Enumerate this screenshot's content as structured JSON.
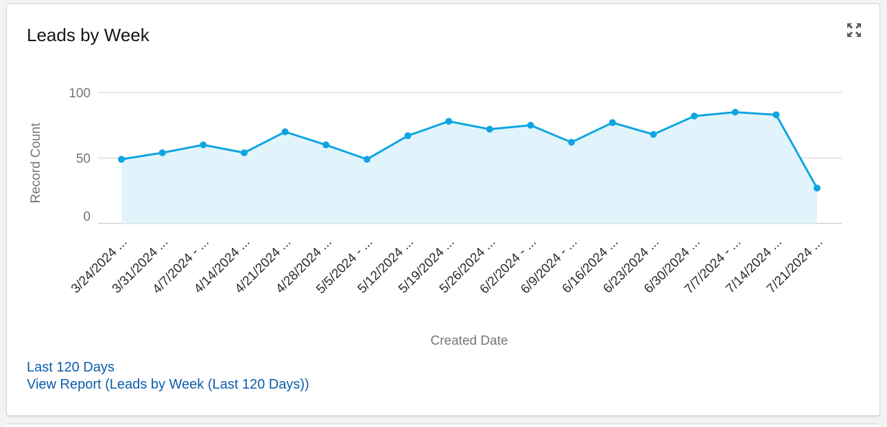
{
  "card": {
    "title": "Leads by Week",
    "expand_icon": "expand-arrows-icon"
  },
  "chart_data": {
    "type": "area",
    "title": "Leads by Week",
    "xlabel": "Created Date",
    "ylabel": "Record Count",
    "categories": [
      "3/24/2024 ...",
      "3/31/2024 ...",
      "4/7/2024 - ...",
      "4/14/2024 ...",
      "4/21/2024 ...",
      "4/28/2024 ...",
      "5/5/2024 - ...",
      "5/12/2024 ...",
      "5/19/2024 ...",
      "5/26/2024 ...",
      "6/2/2024 - ...",
      "6/9/2024 - ...",
      "6/16/2024 ...",
      "6/23/2024 ...",
      "6/30/2024 ...",
      "7/7/2024 - ...",
      "7/14/2024 ...",
      "7/21/2024 ..."
    ],
    "values": [
      49,
      54,
      60,
      54,
      70,
      60,
      49,
      67,
      78,
      72,
      75,
      62,
      77,
      68,
      82,
      85,
      83,
      27
    ],
    "ylim": [
      0,
      100
    ],
    "yticks": [
      "0",
      "50",
      "100"
    ],
    "grid": true,
    "line_color": "#0ea5e1",
    "fill_color": "#e1f4fb",
    "grid_color": "#dddddd"
  },
  "footer": {
    "filter_label": "Last 120 Days",
    "report_link": "View Report (Leads by Week (Last 120 Days))"
  }
}
